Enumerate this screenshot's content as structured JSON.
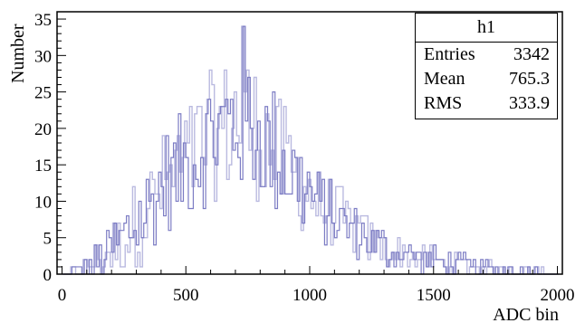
{
  "chart_data": {
    "type": "bar",
    "histogram_name": "h1",
    "xlabel": "ADC bin",
    "ylabel": "Number",
    "xlim": [
      -20,
      2020
    ],
    "ylim": [
      0,
      36
    ],
    "x_ticks": [
      0,
      500,
      1000,
      1500,
      2000
    ],
    "y_ticks": [
      0,
      5,
      10,
      15,
      20,
      25,
      30,
      35
    ],
    "grid": false,
    "bin_width": 5,
    "bin_start": 0,
    "envelope": {
      "x": [
        0,
        50,
        100,
        150,
        200,
        250,
        300,
        350,
        400,
        450,
        500,
        550,
        600,
        650,
        700,
        750,
        800,
        850,
        900,
        950,
        1000,
        1050,
        1100,
        1150,
        1200,
        1250,
        1300,
        1350,
        1400,
        1450,
        1500,
        1550,
        1600,
        1650,
        1700,
        1750,
        1800,
        1850,
        1900,
        1950,
        2000
      ],
      "y": [
        0,
        0.3,
        1,
        2,
        3.5,
        5,
        7,
        9,
        12,
        13.5,
        15,
        17,
        19,
        20,
        21,
        21,
        19,
        17,
        15,
        13,
        11,
        9,
        8,
        6.5,
        5.5,
        4.5,
        3.5,
        3,
        2.5,
        2,
        1.8,
        1.5,
        1.2,
        1,
        0.8,
        0.7,
        0.5,
        0.4,
        0.3,
        0.2,
        0
      ],
      "spread": [
        0,
        1,
        2,
        3,
        4,
        5,
        6,
        7,
        7,
        8,
        8,
        9,
        9,
        9,
        10,
        10,
        9,
        9,
        8,
        7,
        6,
        5,
        5,
        4,
        4,
        3,
        3,
        2,
        2,
        2,
        2,
        2,
        2,
        1,
        1,
        1,
        1,
        1,
        1,
        1,
        0
      ]
    },
    "peak_bin": {
      "x": 730,
      "y": 34
    },
    "stats": {
      "entries_label": "Entries",
      "entries_value": "3342",
      "mean_label": "Mean",
      "mean_value": "765.3",
      "rms_label": "RMS",
      "rms_value": "333.9"
    },
    "colors": {
      "line_dark": "#7c7cc4",
      "line_light": "#babae0",
      "frame": "#000000"
    }
  }
}
